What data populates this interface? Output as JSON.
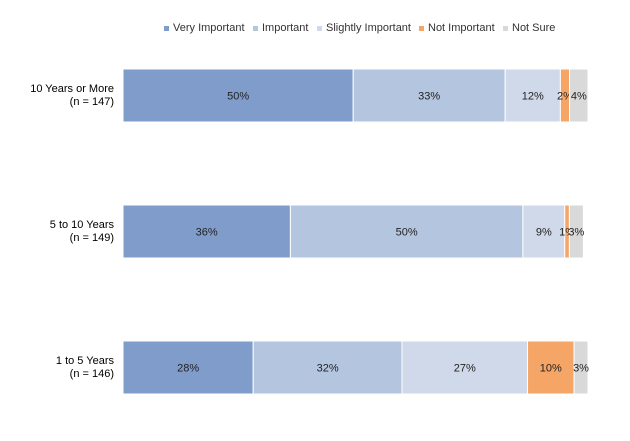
{
  "chart_data": {
    "type": "bar",
    "orientation": "horizontal",
    "stacked": true,
    "percent": true,
    "categories": [
      {
        "line1": "10 Years or More",
        "line2": "(n = 147)"
      },
      {
        "line1": "5 to 10 Years",
        "line2": "(n = 149)"
      },
      {
        "line1": "1 to 5 Years",
        "line2": "(n = 146)"
      }
    ],
    "series": [
      {
        "name": "Very Important",
        "color": "#7f9ccb",
        "values": [
          50,
          36,
          28
        ],
        "labels": [
          "50%",
          "36%",
          "28%"
        ]
      },
      {
        "name": "Important",
        "color": "#b4c5e0",
        "values": [
          33,
          50,
          32
        ],
        "labels": [
          "33%",
          "50%",
          "32%"
        ]
      },
      {
        "name": "Slightly Important",
        "color": "#cfd9ea",
        "values": [
          12,
          9,
          27
        ],
        "labels": [
          "12%",
          "9%",
          "27%"
        ]
      },
      {
        "name": "Not Important",
        "color": "#f5a565",
        "values": [
          2,
          1,
          10
        ],
        "labels": [
          "2%",
          "1%",
          "10%"
        ]
      },
      {
        "name": "Not Sure",
        "color": "#d9d9d9",
        "values": [
          4,
          3,
          3
        ],
        "labels": [
          "4%",
          "3%",
          "3%"
        ]
      }
    ],
    "xlim": [
      0,
      100
    ],
    "grid": false,
    "legend_position": "top"
  }
}
